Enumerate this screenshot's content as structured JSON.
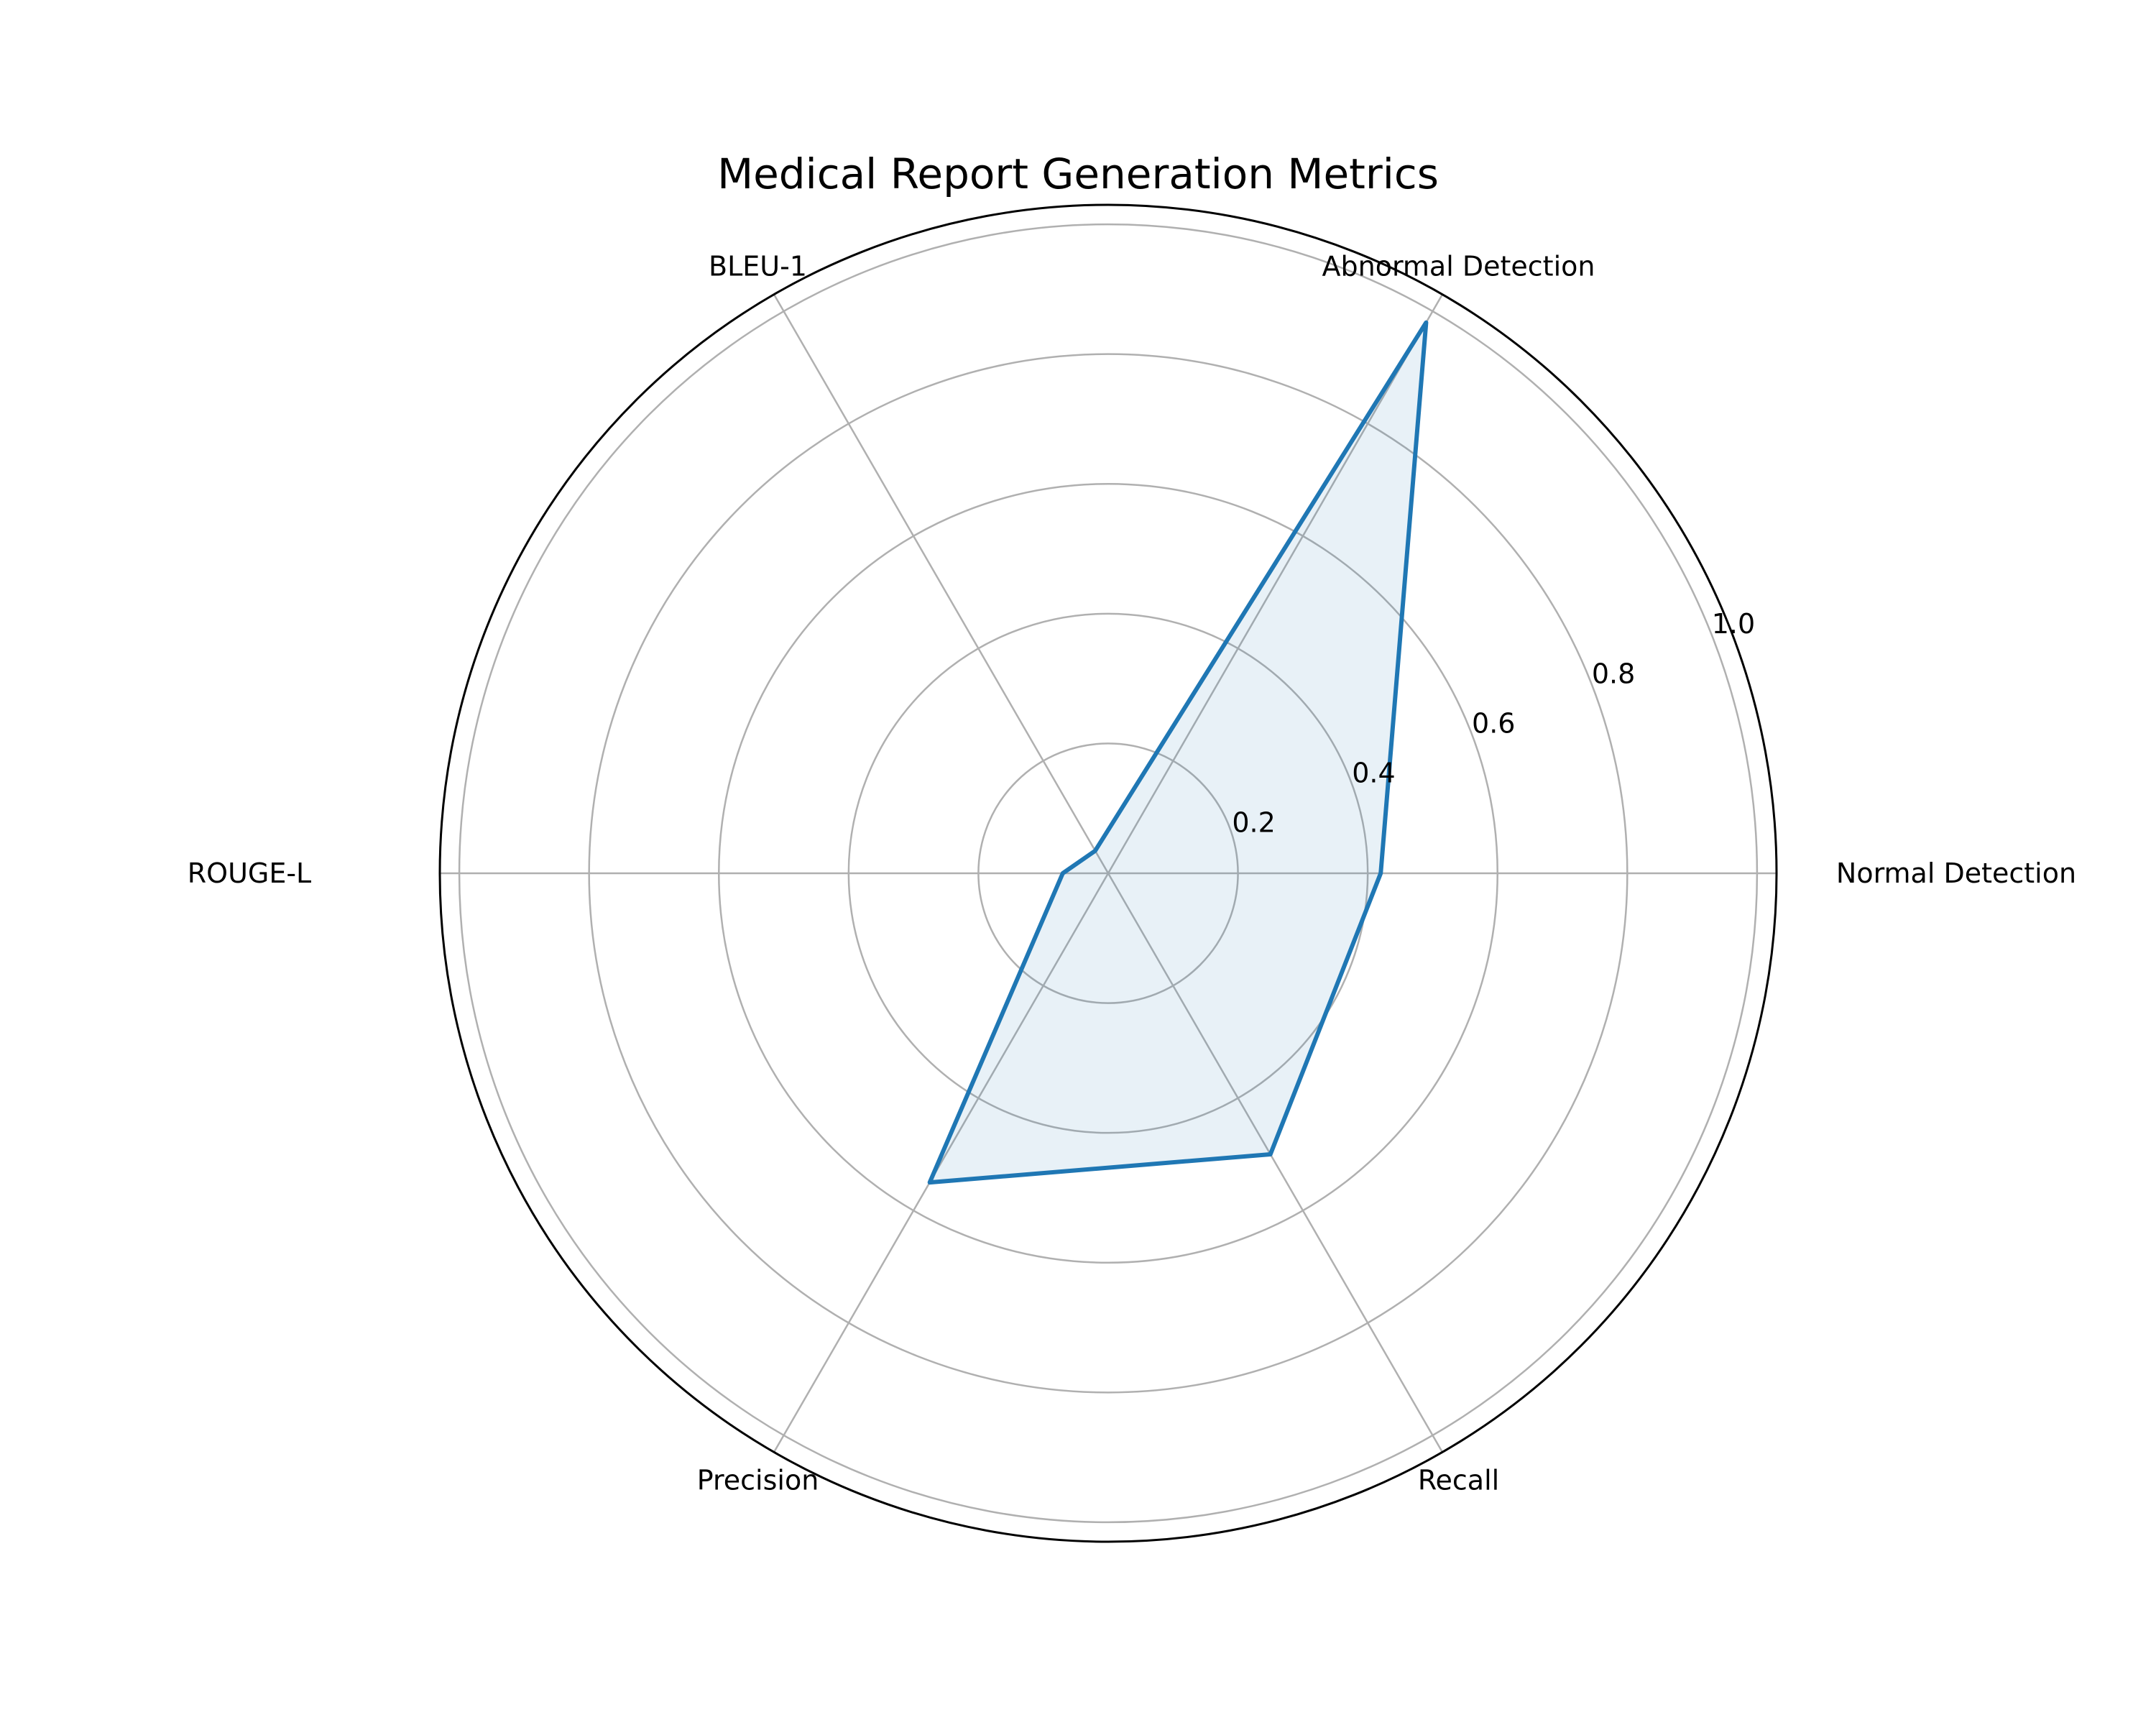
{
  "chart_data": {
    "type": "radar",
    "title": "Medical Report Generation Metrics",
    "categories": [
      "Normal Detection",
      "Abnormal Detection",
      "BLEU-1",
      "ROUGE-L",
      "Precision",
      "Recall"
    ],
    "series": [
      {
        "values": [
          0.42,
          0.98,
          0.04,
          0.07,
          0.55,
          0.5
        ]
      }
    ],
    "rlim": [
      0,
      1.03
    ],
    "r_ticks": [
      0.2,
      0.4,
      0.6,
      0.8,
      1.0
    ],
    "r_tick_labels": [
      "0.2",
      "0.4",
      "0.6",
      "0.8",
      "1.0"
    ],
    "grid": true,
    "colors": {
      "series": "#1f77b4",
      "grid": "#b0b0b0",
      "frame": "#000000"
    }
  }
}
